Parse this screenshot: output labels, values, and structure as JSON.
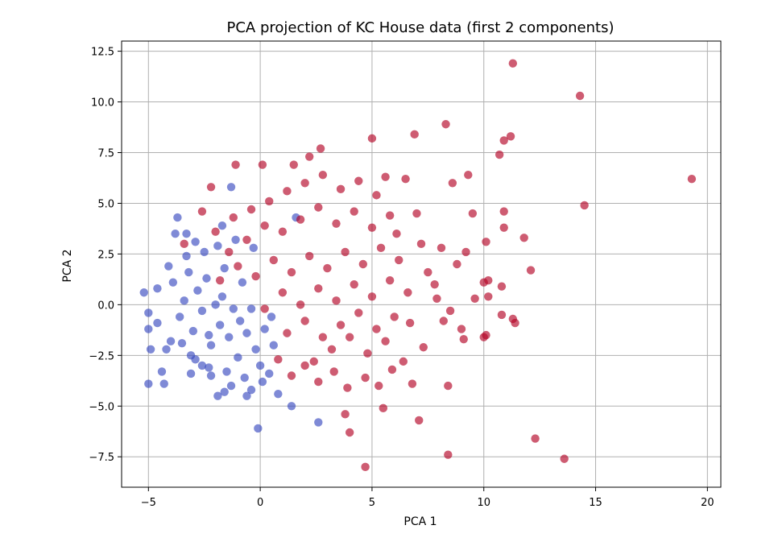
{
  "chart_data": {
    "type": "scatter",
    "title": "PCA projection of KC House data (first 2 components)",
    "xlabel": "PCA 1",
    "ylabel": "PCA 2",
    "xlim": [
      -6.2,
      20.6
    ],
    "ylim": [
      -9.0,
      13.0
    ],
    "xticks": [
      -5,
      0,
      5,
      10,
      15,
      20
    ],
    "xtick_labels": [
      "−5",
      "0",
      "5",
      "10",
      "15",
      "20"
    ],
    "yticks": [
      -7.5,
      -5.0,
      -2.5,
      0.0,
      2.5,
      5.0,
      7.5,
      10.0,
      12.5
    ],
    "ytick_labels": [
      "−7.5",
      "−5.0",
      "−2.5",
      "0.0",
      "2.5",
      "5.0",
      "7.5",
      "10.0",
      "12.5"
    ],
    "grid": true,
    "legend": "none",
    "colors": {
      "class_0": "#3b4cc0",
      "class_1": "#b40426"
    },
    "series": [
      {
        "color": "#3b4cc0",
        "points": [
          [
            -5.2,
            0.6
          ],
          [
            -5.0,
            -0.4
          ],
          [
            -5.0,
            -1.2
          ],
          [
            -4.9,
            -2.2
          ],
          [
            -5.0,
            -3.9
          ],
          [
            -4.4,
            -3.3
          ],
          [
            -4.3,
            -3.9
          ],
          [
            -4.2,
            -2.2
          ],
          [
            -4.0,
            -1.8
          ],
          [
            -3.7,
            4.3
          ],
          [
            -3.8,
            3.5
          ],
          [
            -3.3,
            3.5
          ],
          [
            -3.1,
            -2.5
          ],
          [
            -3.1,
            -3.4
          ],
          [
            -2.9,
            3.1
          ],
          [
            -2.6,
            -3.0
          ],
          [
            -2.2,
            -3.5
          ],
          [
            -1.9,
            -4.5
          ],
          [
            -1.6,
            -4.3
          ],
          [
            -1.3,
            -4.0
          ],
          [
            -0.6,
            -4.5
          ],
          [
            -0.4,
            -4.2
          ],
          [
            -0.1,
            -6.1
          ],
          [
            -1.3,
            5.8
          ],
          [
            -1.7,
            3.9
          ],
          [
            -2.3,
            -1.5
          ],
          [
            -1.7,
            0.4
          ],
          [
            -0.9,
            -0.8
          ],
          [
            1.4,
            -5.0
          ],
          [
            2.6,
            -5.8
          ],
          [
            0.8,
            -4.4
          ],
          [
            1.6,
            4.3
          ],
          [
            -4.6,
            0.8
          ],
          [
            -4.6,
            -0.9
          ],
          [
            -3.9,
            1.1
          ],
          [
            -3.6,
            -0.6
          ],
          [
            -3.4,
            0.2
          ],
          [
            -3.2,
            1.6
          ],
          [
            -3.0,
            -1.3
          ],
          [
            -2.8,
            0.7
          ],
          [
            -2.6,
            -0.3
          ],
          [
            -2.4,
            1.3
          ],
          [
            -2.2,
            -2.0
          ],
          [
            -2.0,
            0.0
          ],
          [
            -1.8,
            -1.0
          ],
          [
            -1.6,
            1.8
          ],
          [
            -1.4,
            -1.6
          ],
          [
            -1.2,
            -0.2
          ],
          [
            -1.0,
            -2.6
          ],
          [
            -0.8,
            1.1
          ],
          [
            -0.6,
            -1.4
          ],
          [
            -0.4,
            -0.2
          ],
          [
            -0.2,
            -2.2
          ],
          [
            0.0,
            -3.0
          ],
          [
            0.2,
            -1.2
          ],
          [
            0.4,
            -3.4
          ],
          [
            0.6,
            -2.0
          ],
          [
            -3.5,
            -1.9
          ],
          [
            -2.9,
            -2.7
          ],
          [
            -2.3,
            -3.1
          ],
          [
            -1.5,
            -3.3
          ],
          [
            -0.7,
            -3.6
          ],
          [
            0.1,
            -3.8
          ],
          [
            -4.1,
            1.9
          ],
          [
            -3.3,
            2.4
          ],
          [
            -2.5,
            2.6
          ],
          [
            -1.9,
            2.9
          ],
          [
            -1.1,
            3.2
          ],
          [
            -0.3,
            2.8
          ],
          [
            0.5,
            -0.6
          ]
        ]
      },
      {
        "color": "#b40426",
        "points": [
          [
            11.3,
            11.9
          ],
          [
            14.3,
            10.3
          ],
          [
            19.3,
            6.2
          ],
          [
            14.5,
            4.9
          ],
          [
            8.3,
            8.9
          ],
          [
            6.9,
            8.4
          ],
          [
            5.0,
            8.2
          ],
          [
            11.2,
            8.3
          ],
          [
            10.9,
            8.1
          ],
          [
            10.7,
            7.4
          ],
          [
            9.3,
            6.4
          ],
          [
            8.6,
            6.0
          ],
          [
            9.5,
            4.5
          ],
          [
            10.9,
            4.6
          ],
          [
            10.9,
            3.8
          ],
          [
            11.8,
            3.3
          ],
          [
            10.1,
            3.1
          ],
          [
            12.1,
            1.7
          ],
          [
            10.2,
            1.2
          ],
          [
            10.0,
            1.1
          ],
          [
            10.2,
            0.4
          ],
          [
            10.8,
            0.9
          ],
          [
            9.6,
            0.3
          ],
          [
            10.8,
            -0.5
          ],
          [
            11.3,
            -0.7
          ],
          [
            11.4,
            -0.9
          ],
          [
            10.1,
            -1.5
          ],
          [
            10.0,
            -1.6
          ],
          [
            9.0,
            -1.2
          ],
          [
            9.1,
            -1.7
          ],
          [
            8.5,
            -0.3
          ],
          [
            8.4,
            -4.0
          ],
          [
            7.1,
            -5.7
          ],
          [
            5.5,
            -5.1
          ],
          [
            3.8,
            -5.4
          ],
          [
            4.0,
            -6.3
          ],
          [
            4.7,
            -8.0
          ],
          [
            8.4,
            -7.4
          ],
          [
            12.3,
            -6.6
          ],
          [
            13.6,
            -7.6
          ],
          [
            2.7,
            7.7
          ],
          [
            2.2,
            7.3
          ],
          [
            1.5,
            6.9
          ],
          [
            0.1,
            6.9
          ],
          [
            -1.1,
            6.9
          ],
          [
            -2.2,
            5.8
          ],
          [
            -2.6,
            4.6
          ],
          [
            -3.4,
            3.0
          ],
          [
            6.5,
            6.2
          ],
          [
            5.6,
            6.3
          ],
          [
            8.1,
            2.8
          ],
          [
            7.0,
            4.5
          ],
          [
            6.1,
            3.5
          ],
          [
            7.5,
            1.6
          ],
          [
            7.9,
            0.3
          ],
          [
            6.7,
            -0.9
          ],
          [
            7.3,
            -2.1
          ],
          [
            6.4,
            -2.8
          ],
          [
            6.8,
            -3.9
          ],
          [
            5.9,
            -3.2
          ],
          [
            5.3,
            -4.0
          ],
          [
            4.7,
            -3.6
          ],
          [
            3.9,
            -4.1
          ],
          [
            3.3,
            -3.3
          ],
          [
            2.6,
            -3.8
          ],
          [
            2.0,
            -3.0
          ],
          [
            1.4,
            -3.5
          ],
          [
            0.8,
            -2.7
          ],
          [
            5.2,
            5.4
          ],
          [
            4.4,
            6.1
          ],
          [
            3.6,
            5.7
          ],
          [
            2.8,
            6.4
          ],
          [
            2.0,
            6.0
          ],
          [
            1.2,
            5.6
          ],
          [
            0.4,
            5.1
          ],
          [
            -0.4,
            4.7
          ],
          [
            -1.2,
            4.3
          ],
          [
            -2.0,
            3.6
          ],
          [
            5.8,
            4.4
          ],
          [
            5.0,
            3.8
          ],
          [
            4.2,
            4.6
          ],
          [
            3.4,
            4.0
          ],
          [
            2.6,
            4.8
          ],
          [
            1.8,
            4.2
          ],
          [
            1.0,
            3.6
          ],
          [
            0.2,
            3.9
          ],
          [
            -0.6,
            3.2
          ],
          [
            -1.4,
            2.6
          ],
          [
            6.2,
            2.2
          ],
          [
            5.4,
            2.8
          ],
          [
            4.6,
            2.0
          ],
          [
            3.8,
            2.6
          ],
          [
            3.0,
            1.8
          ],
          [
            2.2,
            2.4
          ],
          [
            1.4,
            1.6
          ],
          [
            0.6,
            2.2
          ],
          [
            -0.2,
            1.4
          ],
          [
            -1.0,
            1.9
          ],
          [
            -1.8,
            1.2
          ],
          [
            6.6,
            0.6
          ],
          [
            5.8,
            1.2
          ],
          [
            5.0,
            0.4
          ],
          [
            4.2,
            1.0
          ],
          [
            3.4,
            0.2
          ],
          [
            2.6,
            0.8
          ],
          [
            1.8,
            0.0
          ],
          [
            1.0,
            0.6
          ],
          [
            0.2,
            -0.2
          ],
          [
            6.0,
            -0.6
          ],
          [
            5.2,
            -1.2
          ],
          [
            4.4,
            -0.4
          ],
          [
            3.6,
            -1.0
          ],
          [
            2.8,
            -1.6
          ],
          [
            2.0,
            -0.8
          ],
          [
            1.2,
            -1.4
          ],
          [
            5.6,
            -1.8
          ],
          [
            4.8,
            -2.4
          ],
          [
            4.0,
            -1.6
          ],
          [
            3.2,
            -2.2
          ],
          [
            2.4,
            -2.8
          ],
          [
            7.2,
            3.0
          ],
          [
            7.8,
            1.0
          ],
          [
            8.8,
            2.0
          ],
          [
            9.2,
            2.6
          ],
          [
            8.2,
            -0.8
          ]
        ]
      }
    ]
  }
}
